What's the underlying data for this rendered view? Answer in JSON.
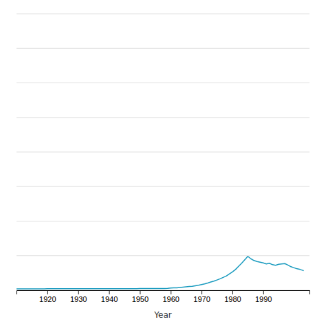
{
  "chart_data": {
    "type": "line",
    "xlabel": "Year",
    "x": [
      1910,
      1911,
      1912,
      1913,
      1914,
      1915,
      1916,
      1917,
      1918,
      1919,
      1920,
      1921,
      1922,
      1923,
      1924,
      1925,
      1926,
      1927,
      1928,
      1929,
      1930,
      1931,
      1932,
      1933,
      1934,
      1935,
      1936,
      1937,
      1938,
      1939,
      1940,
      1941,
      1942,
      1943,
      1944,
      1945,
      1946,
      1947,
      1948,
      1949,
      1950,
      1951,
      1952,
      1953,
      1954,
      1955,
      1956,
      1957,
      1958,
      1959,
      1960,
      1961,
      1962,
      1963,
      1964,
      1965,
      1966,
      1967,
      1968,
      1969,
      1970,
      1971,
      1972,
      1973,
      1974,
      1975,
      1976,
      1977,
      1978,
      1979,
      1980,
      1981,
      1982,
      1983,
      1984,
      1985,
      1986,
      1987,
      1988,
      1989,
      1990,
      1991,
      1992,
      1993,
      1994,
      1995,
      1996,
      1997,
      1998,
      1999,
      2000,
      2001,
      2002,
      2003
    ],
    "values": [
      0.02,
      0.02,
      0.02,
      0.02,
      0.02,
      0.02,
      0.02,
      0.02,
      0.02,
      0.02,
      0.022,
      0.022,
      0.022,
      0.022,
      0.022,
      0.022,
      0.022,
      0.022,
      0.022,
      0.022,
      0.022,
      0.022,
      0.022,
      0.022,
      0.022,
      0.022,
      0.022,
      0.022,
      0.022,
      0.022,
      0.022,
      0.022,
      0.022,
      0.022,
      0.022,
      0.022,
      0.022,
      0.022,
      0.022,
      0.022,
      0.025,
      0.025,
      0.025,
      0.025,
      0.025,
      0.025,
      0.025,
      0.025,
      0.025,
      0.028,
      0.032,
      0.034,
      0.036,
      0.04,
      0.045,
      0.05,
      0.055,
      0.058,
      0.065,
      0.072,
      0.082,
      0.092,
      0.105,
      0.12,
      0.132,
      0.148,
      0.165,
      0.185,
      0.205,
      0.235,
      0.265,
      0.3,
      0.345,
      0.39,
      0.44,
      0.49,
      0.455,
      0.43,
      0.415,
      0.405,
      0.395,
      0.38,
      0.39,
      0.37,
      0.36,
      0.375,
      0.38,
      0.385,
      0.365,
      0.34,
      0.325,
      0.31,
      0.3,
      0.285
    ],
    "color": "#1a9bbf",
    "xlim": [
      1910,
      2005
    ],
    "ylim": [
      0,
      4.0
    ],
    "xticks": [
      1920,
      1930,
      1940,
      1950,
      1960,
      1970,
      1980,
      1990
    ],
    "yticks": [
      0,
      0.5,
      1.0,
      1.5,
      2.0,
      2.5,
      3.0,
      3.5,
      4.0
    ],
    "grid": true,
    "tick_labels": "x"
  }
}
